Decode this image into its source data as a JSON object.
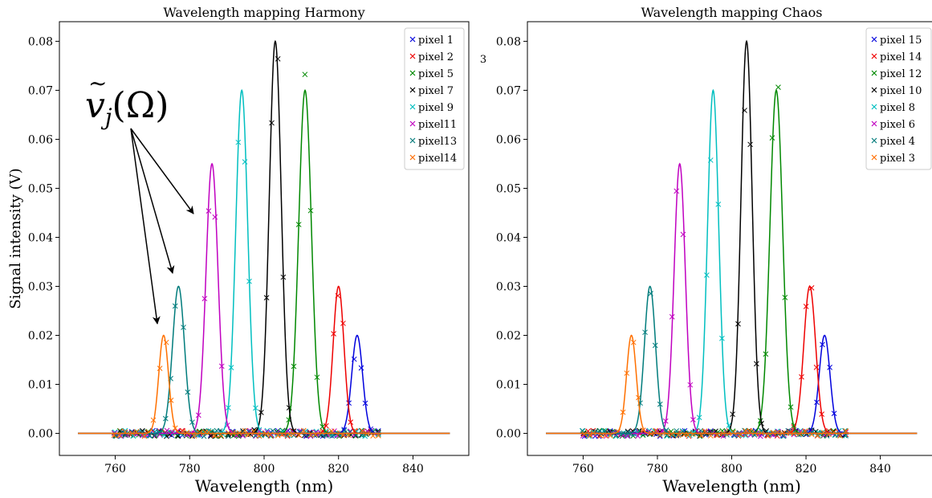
{
  "ylabel": "Signal intensity (V)",
  "stray_mark": "3",
  "annotation": {
    "label": "ṽ_j(Ω)",
    "main": "v",
    "accent": "~",
    "sub": "j",
    "rest": "(Ω)"
  },
  "chart_data": [
    {
      "type": "line",
      "title": "Wavelength mapping Harmony",
      "xlabel": "Wavelength (nm)",
      "ylabel": "Signal intensity (V)",
      "xlim": [
        745,
        855
      ],
      "ylim": [
        -0.0045,
        0.084
      ],
      "xticks": [
        760,
        780,
        800,
        820,
        840
      ],
      "yticks": [
        0.0,
        0.01,
        0.02,
        0.03,
        0.04,
        0.05,
        0.06,
        0.07,
        0.08
      ],
      "ytick_labels": [
        "0.00",
        "0.01",
        "0.02",
        "0.03",
        "0.04",
        "0.05",
        "0.06",
        "0.07",
        "0.08"
      ],
      "fit_range": [
        750,
        850
      ],
      "sample_range": [
        760,
        831
      ],
      "legend_position": "top-right",
      "series": [
        {
          "name": "pixel 1",
          "color": "#0000dd",
          "center": 825,
          "amplitude": 0.02,
          "sigma": 1.45
        },
        {
          "name": "pixel 2",
          "color": "#ee0000",
          "center": 820,
          "amplitude": 0.03,
          "sigma": 1.45
        },
        {
          "name": "pixel 5",
          "color": "#008800",
          "center": 811,
          "amplitude": 0.07,
          "sigma": 1.7
        },
        {
          "name": "pixel 7",
          "color": "#000000",
          "center": 803,
          "amplitude": 0.08,
          "sigma": 1.6
        },
        {
          "name": "pixel 9",
          "color": "#00bfc0",
          "center": 794,
          "amplitude": 0.07,
          "sigma": 1.6
        },
        {
          "name": "pixel11",
          "color": "#c000c0",
          "center": 786,
          "amplitude": 0.055,
          "sigma": 1.6
        },
        {
          "name": "pixel13",
          "color": "#007c7c",
          "center": 777,
          "amplitude": 0.03,
          "sigma": 1.6
        },
        {
          "name": "pixel14",
          "color": "#ff7000",
          "center": 773,
          "amplitude": 0.02,
          "sigma": 1.3
        }
      ]
    },
    {
      "type": "line",
      "title": "Wavelength mapping Chaos",
      "xlabel": "Wavelength (nm)",
      "ylabel": "",
      "xlim": [
        745,
        855
      ],
      "ylim": [
        -0.0045,
        0.084
      ],
      "xticks": [
        760,
        780,
        800,
        820,
        840
      ],
      "yticks": [
        0.0,
        0.01,
        0.02,
        0.03,
        0.04,
        0.05,
        0.06,
        0.07,
        0.08
      ],
      "ytick_labels": [
        "0.00",
        "0.01",
        "0.02",
        "0.03",
        "0.04",
        "0.05",
        "0.06",
        "0.07",
        "0.08"
      ],
      "fit_range": [
        750,
        850
      ],
      "sample_range": [
        760,
        831
      ],
      "legend_position": "top-right",
      "series": [
        {
          "name": "pixel 15",
          "color": "#0000dd",
          "center": 825,
          "amplitude": 0.02,
          "sigma": 1.45
        },
        {
          "name": "pixel 14",
          "color": "#ee0000",
          "center": 821,
          "amplitude": 0.03,
          "sigma": 1.6
        },
        {
          "name": "pixel 12",
          "color": "#008800",
          "center": 812,
          "amplitude": 0.07,
          "sigma": 1.7
        },
        {
          "name": "pixel 10",
          "color": "#000000",
          "center": 804,
          "amplitude": 0.08,
          "sigma": 1.5
        },
        {
          "name": "pixel  8",
          "color": "#00bfc0",
          "center": 795,
          "amplitude": 0.07,
          "sigma": 1.5
        },
        {
          "name": "pixel  6",
          "color": "#c000c0",
          "center": 786,
          "amplitude": 0.055,
          "sigma": 1.5
        },
        {
          "name": "pixel  4",
          "color": "#007c7c",
          "center": 778,
          "amplitude": 0.03,
          "sigma": 1.5
        },
        {
          "name": "pixel  3",
          "color": "#ff7000",
          "center": 773,
          "amplitude": 0.02,
          "sigma": 1.3
        }
      ]
    }
  ]
}
